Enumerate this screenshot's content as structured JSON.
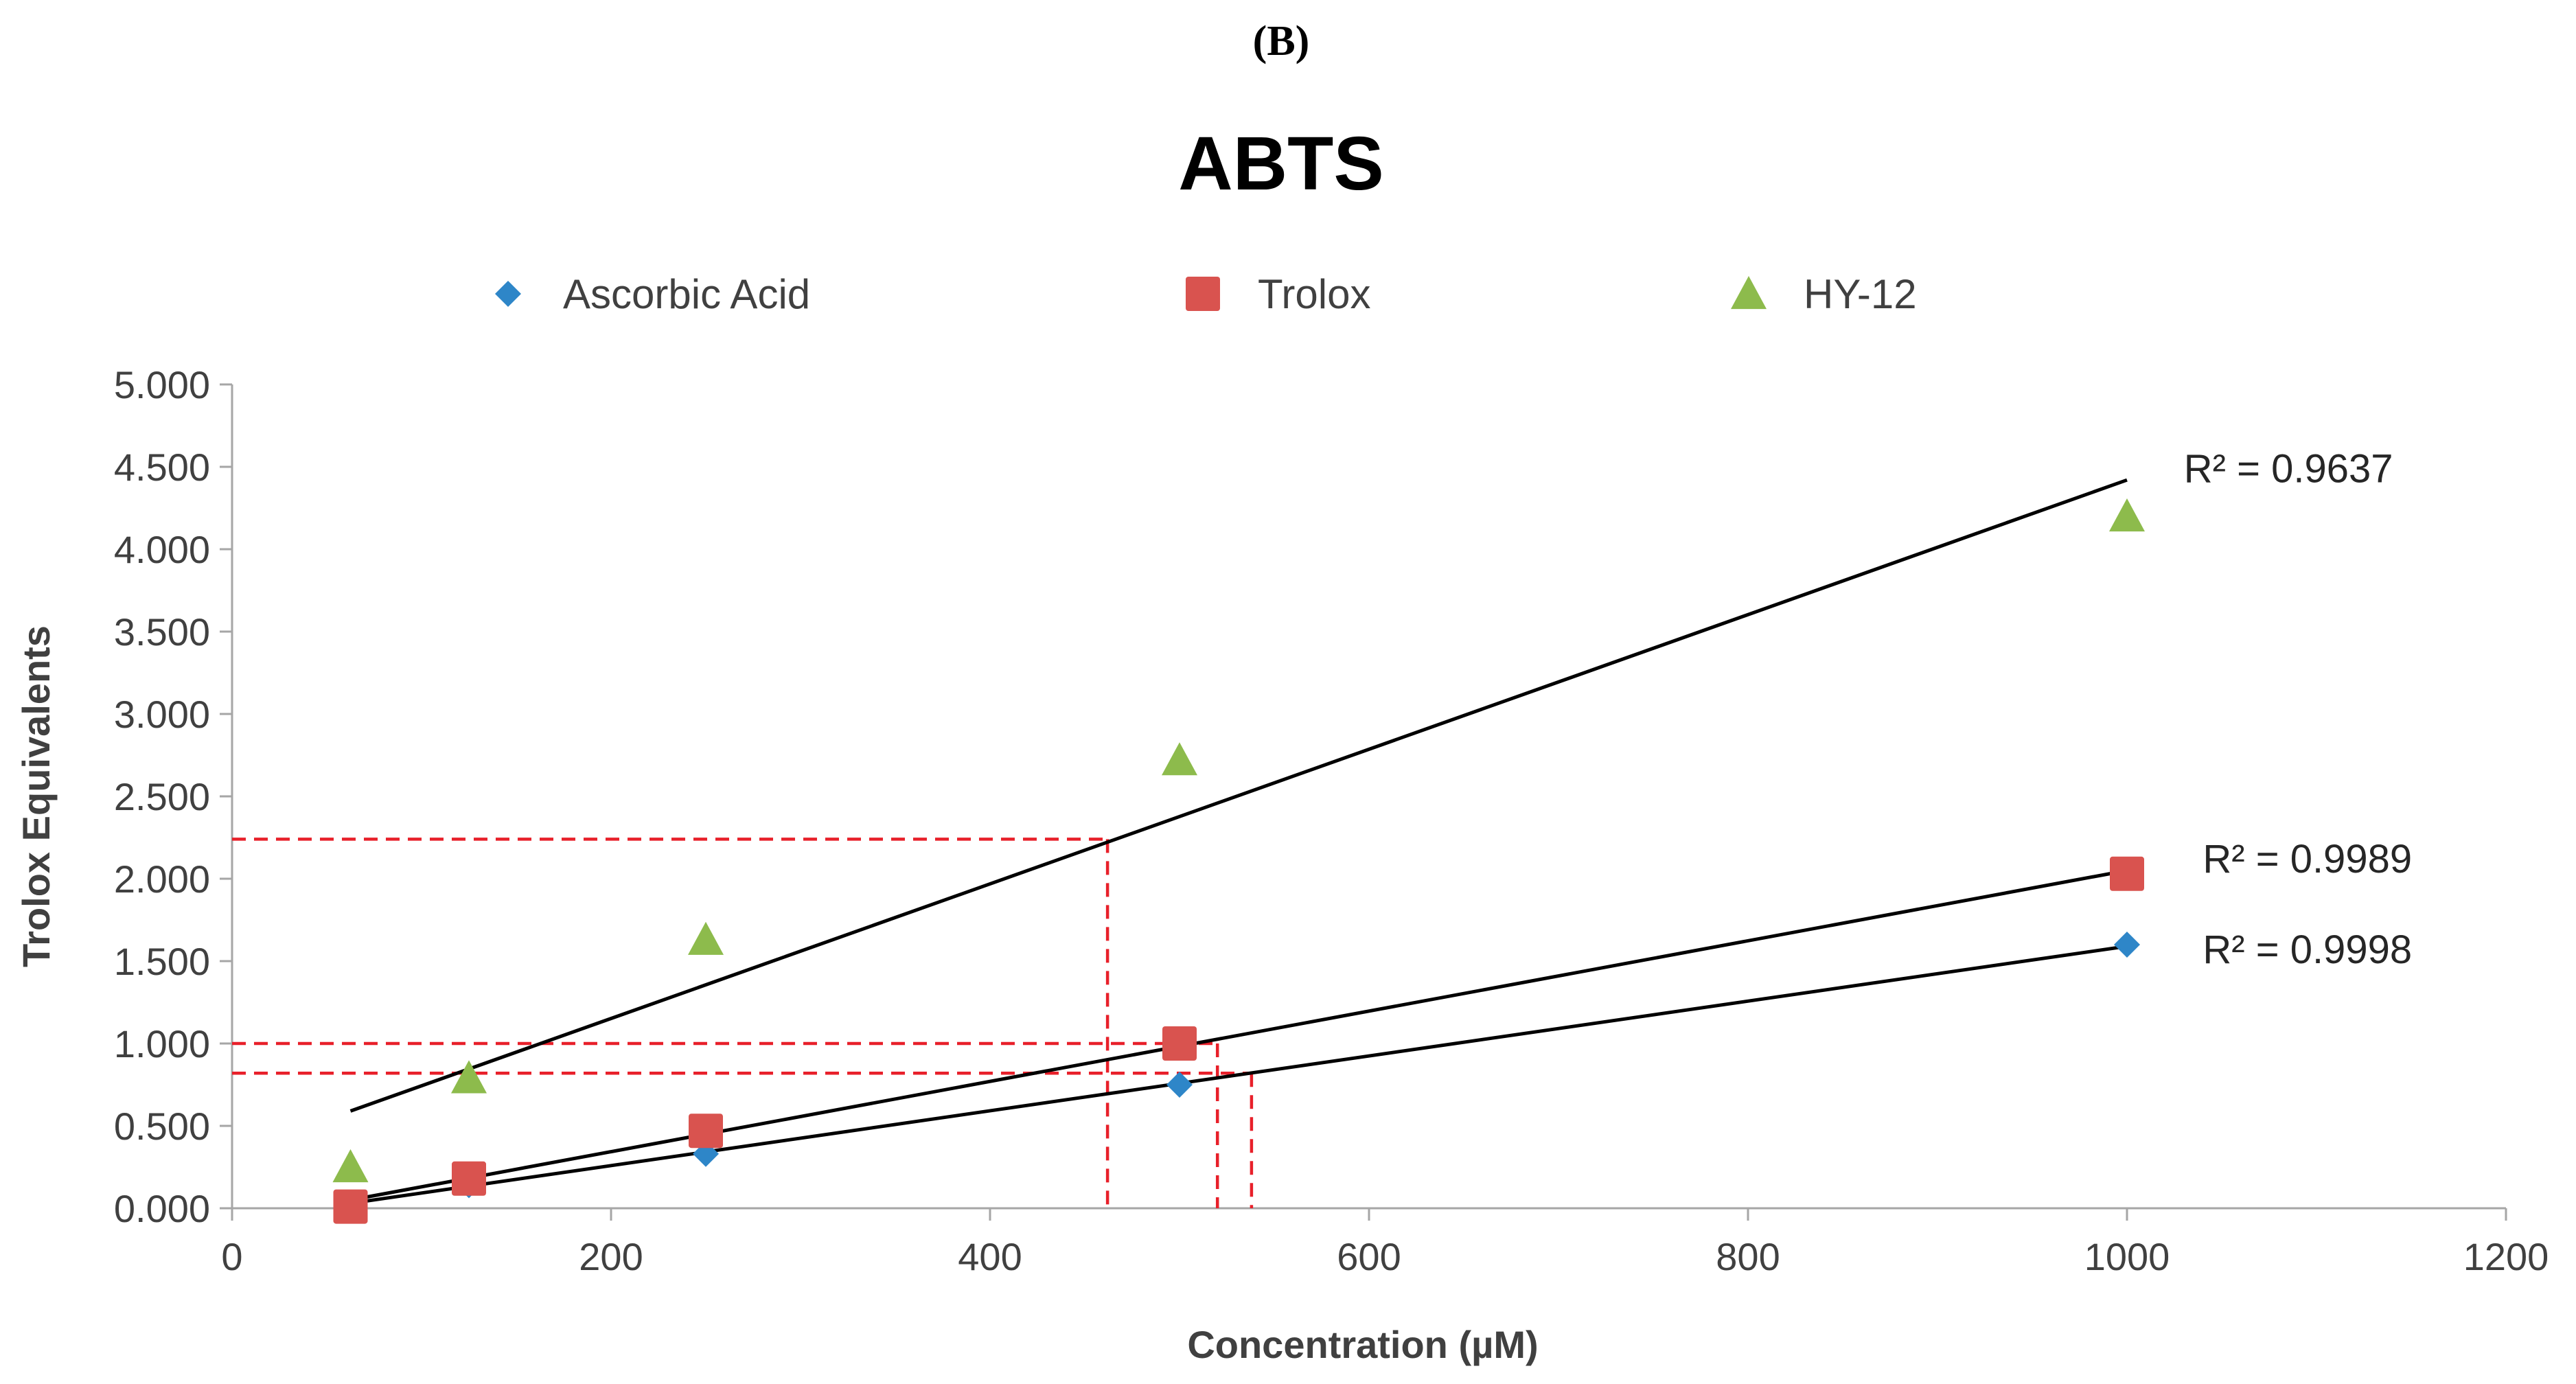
{
  "panel_label": "(B)",
  "colors": {
    "ascorbic": "#2E86C8",
    "trolox": "#D9534F",
    "hy12": "#8DBB4C",
    "fit_line": "#000000",
    "guide": "#E8202A",
    "axis": "#A6A6A6"
  },
  "chart_data": {
    "type": "scatter",
    "title": "ABTS",
    "xlabel": "Concentration (µM)",
    "ylabel": "Trolox Equivalents",
    "xlim": [
      0,
      1200
    ],
    "ylim": [
      0,
      5
    ],
    "x_ticks": [
      0,
      200,
      400,
      600,
      800,
      1000,
      1200
    ],
    "x_tick_labels": [
      "0",
      "200",
      "400",
      "600",
      "800",
      "1000",
      "1200"
    ],
    "y_ticks": [
      0,
      0.5,
      1,
      1.5,
      2,
      2.5,
      3,
      3.5,
      4,
      4.5,
      5
    ],
    "y_tick_labels": [
      "0.000",
      "0.500",
      "1.000",
      "1.500",
      "2.000",
      "2.500",
      "3.000",
      "3.500",
      "4.000",
      "4.500",
      "5.000"
    ],
    "legend_position": "top",
    "series": [
      {
        "name": "Ascorbic Acid",
        "marker": "diamond",
        "color_key": "ascorbic",
        "x": [
          62.5,
          125,
          250,
          500,
          1000
        ],
        "y": [
          0.02,
          0.14,
          0.33,
          0.75,
          1.6
        ],
        "trendline": {
          "x": [
            62.5,
            1000
          ],
          "y": [
            0.03,
            1.59
          ]
        },
        "r2_label": "R² = 0.9998",
        "r2_anchor": [
          1040,
          1.57
        ]
      },
      {
        "name": "Trolox",
        "marker": "square",
        "color_key": "trolox",
        "x": [
          62.5,
          125,
          250,
          500,
          1000
        ],
        "y": [
          0.01,
          0.18,
          0.47,
          1.0,
          2.03
        ],
        "trendline": {
          "x": [
            62.5,
            1000
          ],
          "y": [
            0.05,
            2.05
          ]
        },
        "r2_label": "R² = 0.9989",
        "r2_anchor": [
          1040,
          2.12
        ]
      },
      {
        "name": "HY-12",
        "marker": "triangle",
        "color_key": "hy12",
        "x": [
          62.5,
          125,
          250,
          500,
          1000
        ],
        "y": [
          0.25,
          0.79,
          1.63,
          2.72,
          4.2
        ],
        "trendline": {
          "x": [
            62.5,
            1000
          ],
          "y": [
            0.59,
            4.42
          ]
        },
        "r2_label": "R² = 0.9637",
        "r2_anchor": [
          1030,
          4.49
        ]
      }
    ],
    "guide_lines": [
      {
        "name": "hy12-guide",
        "y": 2.24,
        "x": 462
      },
      {
        "name": "trolox-guide",
        "y": 1.0,
        "x": 520
      },
      {
        "name": "ascorbic-guide",
        "y": 0.82,
        "x": 538
      }
    ]
  }
}
